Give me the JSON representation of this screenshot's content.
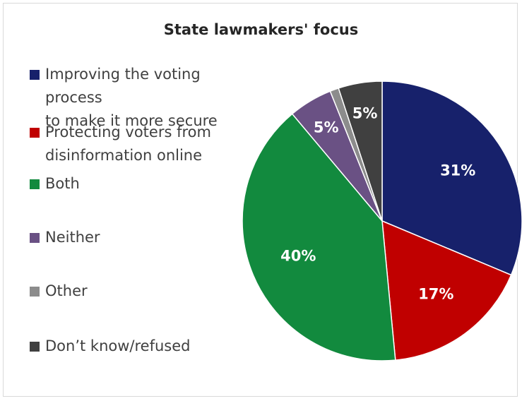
{
  "chart_data": {
    "type": "pie",
    "title": "State lawmakers' focus",
    "legend_position": "left",
    "slices": [
      {
        "name": "Improving the voting process to make it more secure",
        "legend_lines": [
          "Improving the voting process",
          "to make it more secure"
        ],
        "value": 31,
        "label": "31%",
        "color": "#17216b"
      },
      {
        "name": "Protecting voters from disinformation online",
        "legend_lines": [
          "Protecting voters from",
          "disinformation online"
        ],
        "value": 17,
        "label": "17%",
        "color": "#c00000"
      },
      {
        "name": "Both",
        "legend_lines": [
          "Both"
        ],
        "value": 40,
        "label": "40%",
        "color": "#128a3e"
      },
      {
        "name": "Neither",
        "legend_lines": [
          "Neither"
        ],
        "value": 5,
        "label": "5%",
        "color": "#6a5184"
      },
      {
        "name": "Other",
        "legend_lines": [
          "Other"
        ],
        "value": 1,
        "label": "",
        "color": "#8c8c8c"
      },
      {
        "name": "Don’t know/refused",
        "legend_lines": [
          "Don’t know/refused"
        ],
        "value": 5,
        "label": "5%",
        "color": "#404040"
      }
    ]
  }
}
